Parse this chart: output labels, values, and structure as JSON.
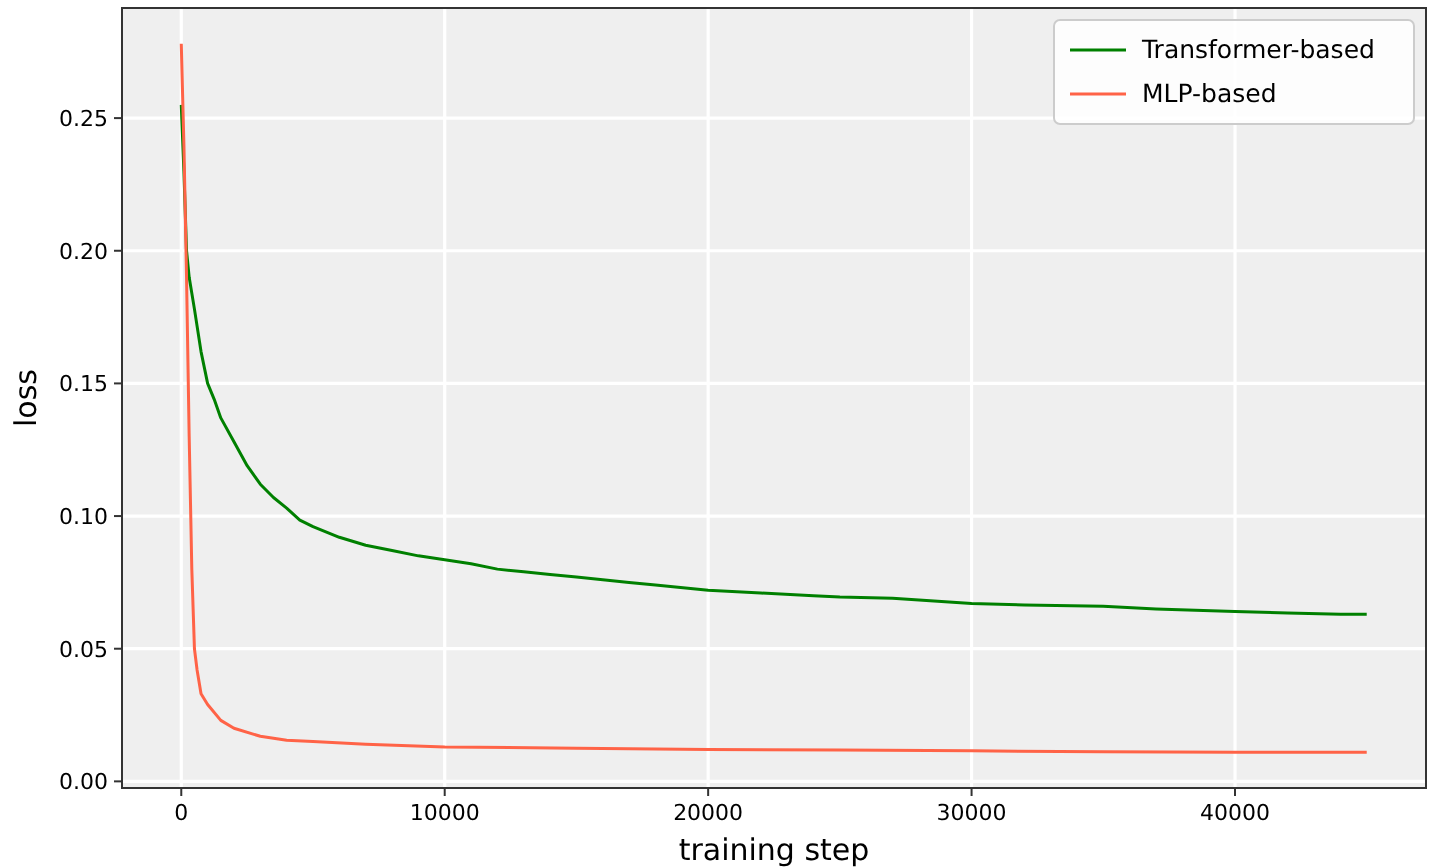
{
  "chart_data": {
    "type": "line",
    "xlabel": "training step",
    "ylabel": "loss",
    "xlim": [
      -2250,
      47250
    ],
    "ylim": [
      -0.0025,
      0.2915
    ],
    "xticks": [
      0,
      10000,
      20000,
      30000,
      40000
    ],
    "yticks": [
      {
        "value": 0,
        "label": "0.00"
      },
      {
        "value": 0.05,
        "label": "0.05"
      },
      {
        "value": 0.1,
        "label": "0.10"
      },
      {
        "value": 0.15,
        "label": "0.15"
      },
      {
        "value": 0.2,
        "label": "0.20"
      },
      {
        "value": 0.25,
        "label": "0.25"
      }
    ],
    "grid": true,
    "legend": "top right",
    "line_style": "solid",
    "marker": "none",
    "series": [
      {
        "name": "Transformer-based",
        "color": "#008000",
        "x": [
          0,
          100,
          200,
          300,
          500,
          750,
          1000,
          1250,
          1500,
          2000,
          2500,
          3000,
          3500,
          4000,
          4500,
          5000,
          6000,
          7000,
          8000,
          9000,
          10000,
          11000,
          12000,
          13000,
          14000,
          15000,
          16000,
          17000,
          18000,
          20000,
          22000,
          24000,
          25000,
          27000,
          30000,
          32000,
          35000,
          37000,
          40000,
          42000,
          44000,
          45000
        ],
        "values": [
          0.255,
          0.23,
          0.2,
          0.19,
          0.178,
          0.162,
          0.15,
          0.144,
          0.137,
          0.128,
          0.119,
          0.112,
          0.107,
          0.103,
          0.0985,
          0.096,
          0.092,
          0.089,
          0.087,
          0.085,
          0.0835,
          0.082,
          0.08,
          0.079,
          0.078,
          0.077,
          0.076,
          0.075,
          0.074,
          0.072,
          0.071,
          0.07,
          0.0695,
          0.069,
          0.067,
          0.0665,
          0.066,
          0.065,
          0.064,
          0.0635,
          0.063,
          0.063
        ]
      },
      {
        "name": "MLP-based",
        "color": "#ff6347",
        "x": [
          0,
          100,
          200,
          300,
          400,
          500,
          600,
          750,
          1000,
          1500,
          2000,
          3000,
          4000,
          5000,
          7000,
          10000,
          15000,
          20000,
          25000,
          30000,
          35000,
          40000,
          45000
        ],
        "values": [
          0.278,
          0.24,
          0.19,
          0.13,
          0.08,
          0.05,
          0.042,
          0.033,
          0.029,
          0.023,
          0.02,
          0.017,
          0.0155,
          0.015,
          0.014,
          0.013,
          0.0125,
          0.012,
          0.0118,
          0.0115,
          0.0112,
          0.011,
          0.011
        ]
      }
    ]
  }
}
